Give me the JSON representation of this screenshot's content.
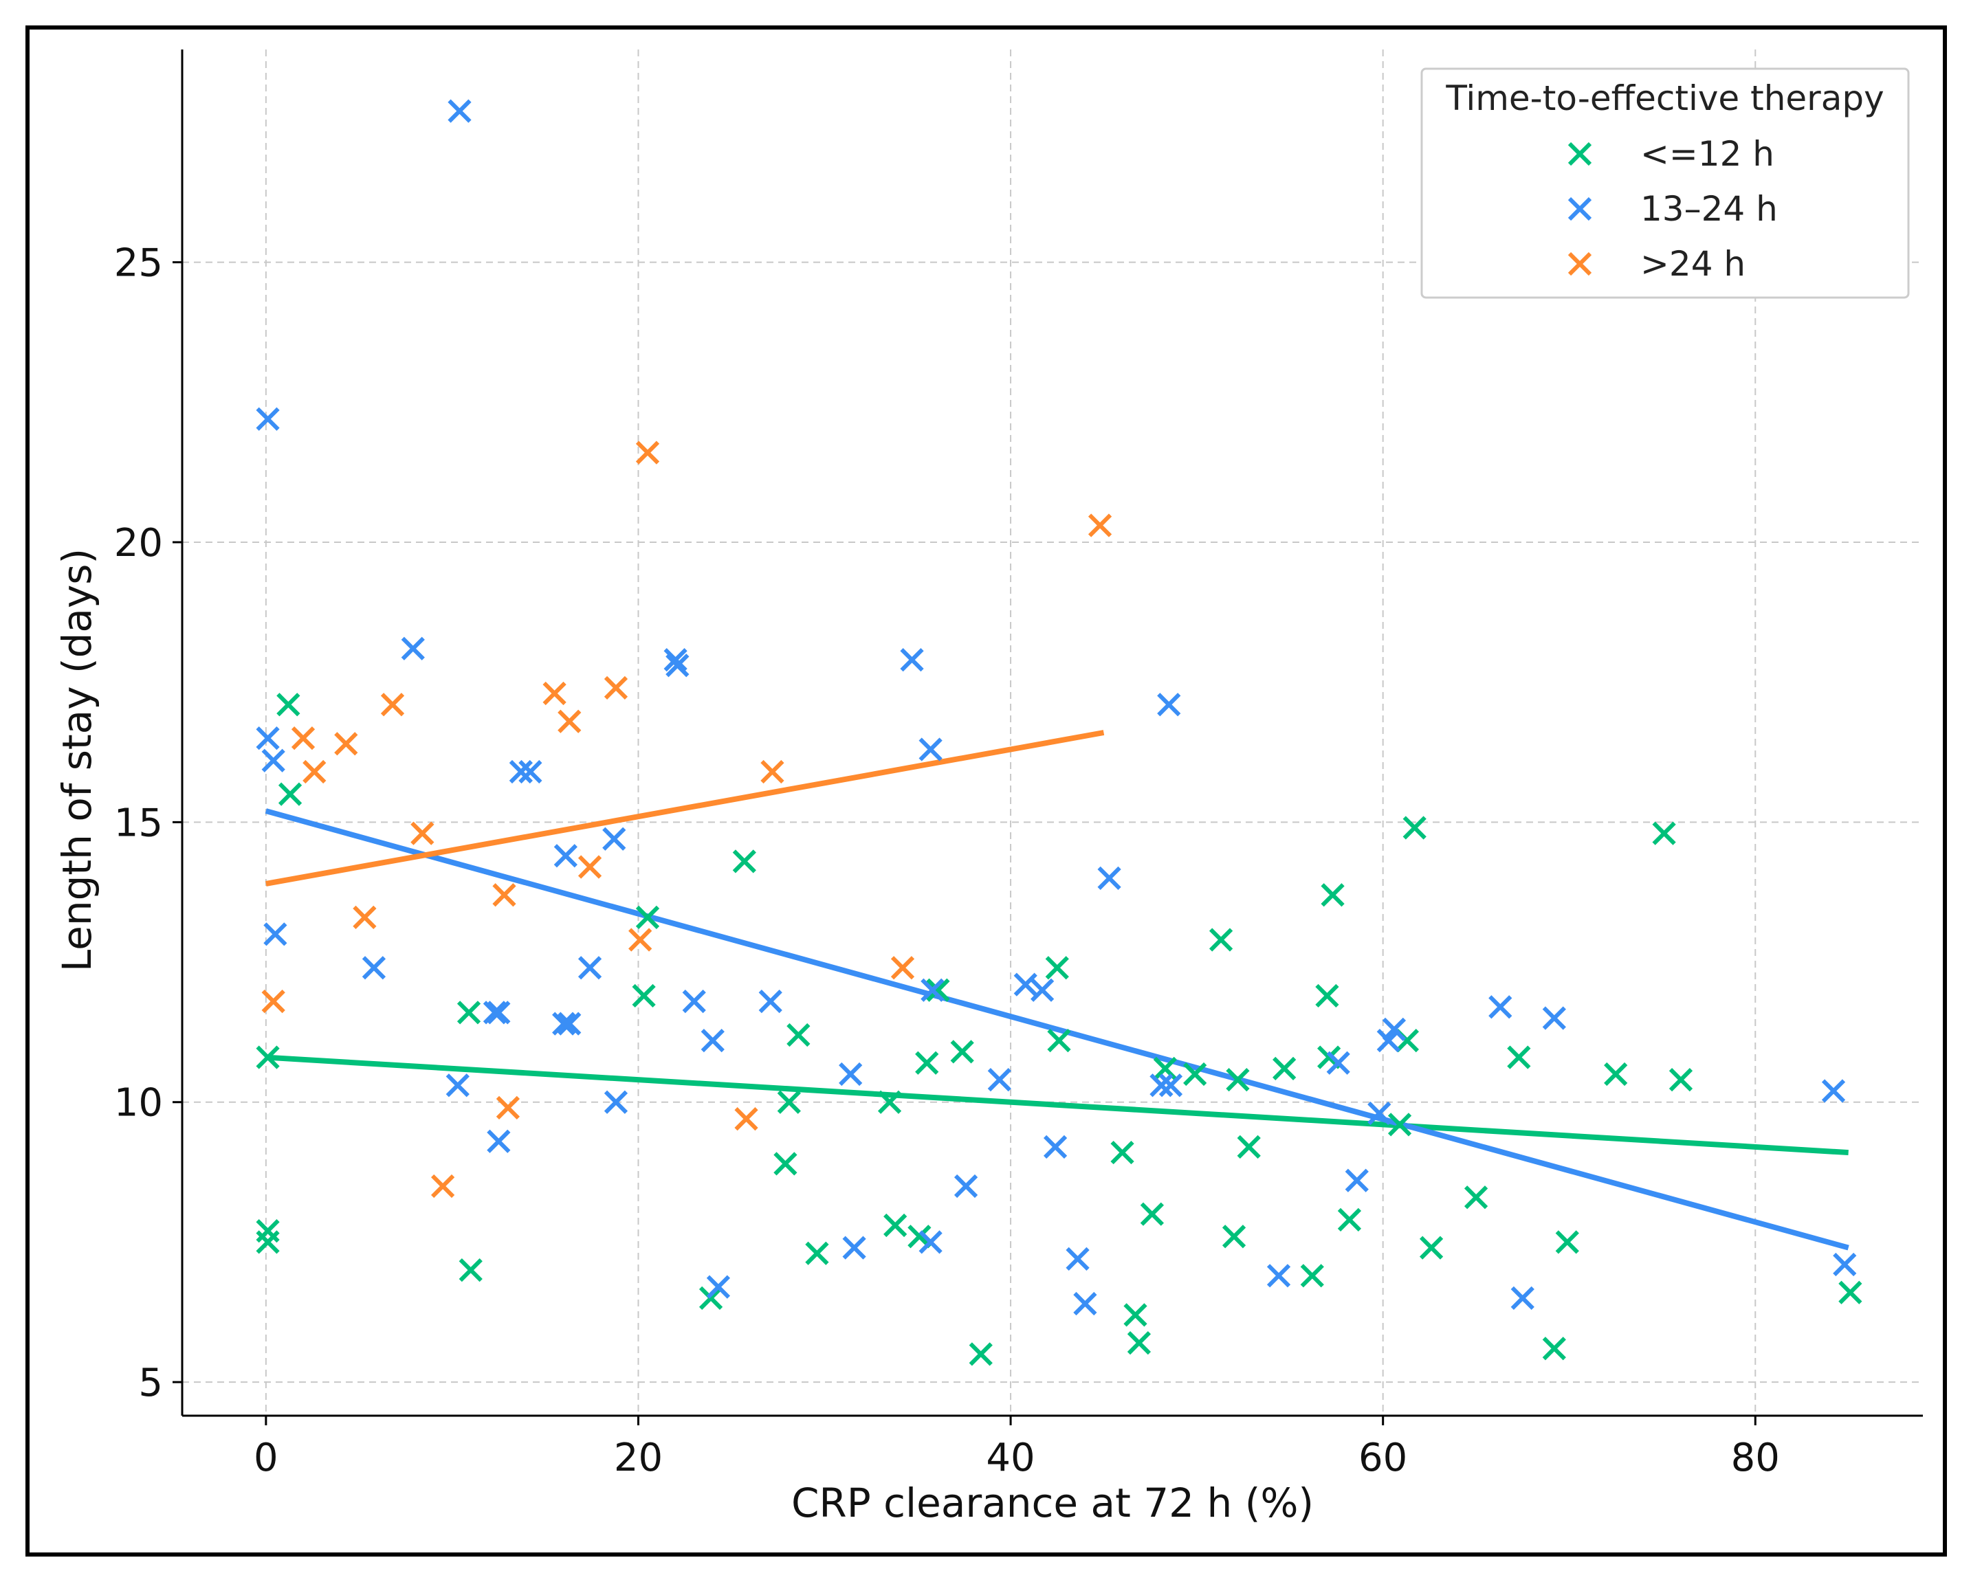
{
  "chart_data": {
    "type": "scatter",
    "title": "",
    "xlabel": "CRP clearance at 72 h (%)",
    "ylabel": "Length of stay (days)",
    "xlim": [
      -4.5,
      89
    ],
    "ylim": [
      4.4,
      28.8
    ],
    "xticks": [
      0,
      20,
      40,
      60,
      80
    ],
    "yticks": [
      5,
      10,
      15,
      20,
      25
    ],
    "grid": true,
    "legend": {
      "title": "Time-to-effective therapy",
      "position": "top-right"
    },
    "series": [
      {
        "name": "<=12 h",
        "color": "#00c07a",
        "marker": "x",
        "trendline": {
          "x": [
            0,
            85
          ],
          "y": [
            10.8,
            9.1
          ]
        },
        "points": [
          [
            0.1,
            10.8
          ],
          [
            0.1,
            7.7
          ],
          [
            0.1,
            7.5
          ],
          [
            1.2,
            17.1
          ],
          [
            1.3,
            15.5
          ],
          [
            10.9,
            11.6
          ],
          [
            11.0,
            7.0
          ],
          [
            20.3,
            11.9
          ],
          [
            20.5,
            13.3
          ],
          [
            23.9,
            6.5
          ],
          [
            25.7,
            14.3
          ],
          [
            27.9,
            8.9
          ],
          [
            28.1,
            10.0
          ],
          [
            28.6,
            11.2
          ],
          [
            29.6,
            7.3
          ],
          [
            33.5,
            10.0
          ],
          [
            33.8,
            7.8
          ],
          [
            35.1,
            7.6
          ],
          [
            35.5,
            10.7
          ],
          [
            36.1,
            12.0
          ],
          [
            37.4,
            10.9
          ],
          [
            38.4,
            5.5
          ],
          [
            42.5,
            12.4
          ],
          [
            42.6,
            11.1
          ],
          [
            46.0,
            9.1
          ],
          [
            46.7,
            6.2
          ],
          [
            46.9,
            5.7
          ],
          [
            47.6,
            8.0
          ],
          [
            48.3,
            10.6
          ],
          [
            49.9,
            10.5
          ],
          [
            51.3,
            12.9
          ],
          [
            52.0,
            7.6
          ],
          [
            52.2,
            10.4
          ],
          [
            52.8,
            9.2
          ],
          [
            54.7,
            10.6
          ],
          [
            56.2,
            6.9
          ],
          [
            57.0,
            11.9
          ],
          [
            57.1,
            10.8
          ],
          [
            57.3,
            13.7
          ],
          [
            58.2,
            7.9
          ],
          [
            60.9,
            9.6
          ],
          [
            61.3,
            11.1
          ],
          [
            61.7,
            14.9
          ],
          [
            62.6,
            7.4
          ],
          [
            65.0,
            8.3
          ],
          [
            67.3,
            10.8
          ],
          [
            69.2,
            5.6
          ],
          [
            69.9,
            7.5
          ],
          [
            72.5,
            10.5
          ],
          [
            75.1,
            14.8
          ],
          [
            76.0,
            10.4
          ],
          [
            85.1,
            6.6
          ]
        ]
      },
      {
        "name": "13–24 h",
        "color": "#3a8ef5",
        "marker": "x",
        "trendline": {
          "x": [
            0,
            85
          ],
          "y": [
            15.2,
            7.4
          ]
        },
        "points": [
          [
            0.1,
            22.2
          ],
          [
            0.1,
            16.5
          ],
          [
            0.4,
            16.1
          ],
          [
            0.5,
            13.0
          ],
          [
            5.8,
            12.4
          ],
          [
            7.9,
            18.1
          ],
          [
            10.4,
            27.7
          ],
          [
            10.3,
            10.3
          ],
          [
            12.3,
            11.6
          ],
          [
            12.5,
            11.6
          ],
          [
            12.5,
            9.3
          ],
          [
            13.7,
            15.9
          ],
          [
            14.2,
            15.9
          ],
          [
            16.1,
            14.4
          ],
          [
            16.0,
            11.4
          ],
          [
            16.3,
            11.4
          ],
          [
            17.4,
            12.4
          ],
          [
            18.7,
            14.7
          ],
          [
            18.8,
            10.0
          ],
          [
            22.0,
            17.9
          ],
          [
            22.1,
            17.8
          ],
          [
            23.0,
            11.8
          ],
          [
            24.0,
            11.1
          ],
          [
            24.3,
            6.7
          ],
          [
            27.1,
            11.8
          ],
          [
            31.4,
            10.5
          ],
          [
            31.6,
            7.4
          ],
          [
            34.7,
            17.9
          ],
          [
            35.7,
            16.3
          ],
          [
            35.8,
            12.0
          ],
          [
            35.7,
            7.5
          ],
          [
            37.6,
            8.5
          ],
          [
            39.4,
            10.4
          ],
          [
            40.8,
            12.1
          ],
          [
            41.7,
            12.0
          ],
          [
            42.4,
            9.2
          ],
          [
            43.6,
            7.2
          ],
          [
            44.0,
            6.4
          ],
          [
            45.3,
            14.0
          ],
          [
            48.1,
            10.3
          ],
          [
            48.5,
            17.1
          ],
          [
            48.6,
            10.3
          ],
          [
            54.4,
            6.9
          ],
          [
            57.6,
            10.7
          ],
          [
            58.6,
            8.6
          ],
          [
            59.8,
            9.8
          ],
          [
            60.3,
            11.1
          ],
          [
            60.6,
            11.3
          ],
          [
            66.3,
            11.7
          ],
          [
            67.5,
            6.5
          ],
          [
            69.2,
            11.5
          ],
          [
            84.2,
            10.2
          ],
          [
            84.8,
            7.1
          ]
        ]
      },
      {
        "name": ">24 h",
        "color": "#ff8a2e",
        "marker": "x",
        "trendline": {
          "x": [
            0,
            45
          ],
          "y": [
            13.9,
            16.6
          ]
        },
        "points": [
          [
            0.4,
            11.8
          ],
          [
            2.0,
            16.5
          ],
          [
            2.6,
            15.9
          ],
          [
            4.3,
            16.4
          ],
          [
            5.3,
            13.3
          ],
          [
            6.8,
            17.1
          ],
          [
            8.4,
            14.8
          ],
          [
            9.5,
            8.5
          ],
          [
            12.8,
            13.7
          ],
          [
            13.0,
            9.9
          ],
          [
            15.5,
            17.3
          ],
          [
            16.3,
            16.8
          ],
          [
            17.4,
            14.2
          ],
          [
            18.8,
            17.4
          ],
          [
            20.1,
            12.9
          ],
          [
            20.5,
            21.6
          ],
          [
            25.8,
            9.7
          ],
          [
            27.2,
            15.9
          ],
          [
            34.2,
            12.4
          ],
          [
            44.8,
            20.3
          ]
        ]
      }
    ]
  }
}
